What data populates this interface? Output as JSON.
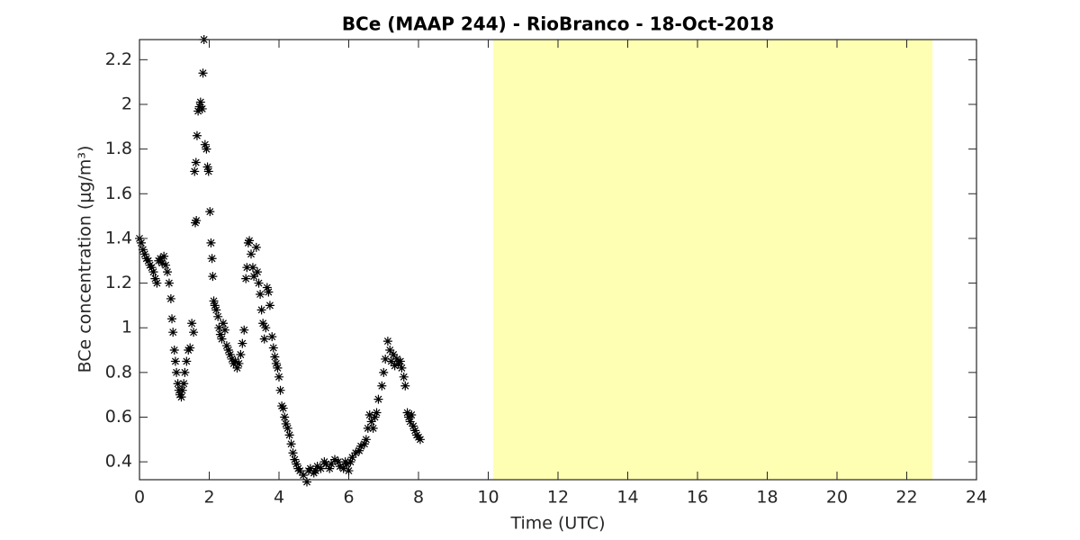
{
  "chart_data": {
    "type": "scatter",
    "title": "BCe (MAAP 244) - RioBranco - 18-Oct-2018",
    "x_label": "Time (UTC)",
    "y_label": "BCe concentration (μg/m³)",
    "marker": "*",
    "color": "#000000",
    "xlim": [
      0,
      24
    ],
    "ylim": [
      0.32,
      2.29
    ],
    "xticks": [
      0,
      2,
      4,
      6,
      8,
      10,
      12,
      14,
      16,
      18,
      20,
      22,
      24
    ],
    "yticks": [
      0.4,
      0.6,
      0.8,
      1,
      1.2,
      1.4,
      1.6,
      1.8,
      2,
      2.2
    ],
    "shaded_region": {
      "xlim": [
        10.14,
        22.74
      ],
      "color": "#ffffb3"
    },
    "x": [
      0,
      0.05,
      0.1,
      0.15,
      0.2,
      0.25,
      0.3,
      0.35,
      0.4,
      0.45,
      0.5,
      0.55,
      0.6,
      0.65,
      0.7,
      0.75,
      0.8,
      0.85,
      0.9,
      0.93,
      0.96,
      1.0,
      1.03,
      1.06,
      1.1,
      1.13,
      1.16,
      1.2,
      1.23,
      1.27,
      1.3,
      1.35,
      1.4,
      1.45,
      1.5,
      1.55,
      1.6,
      1.63,
      1.58,
      1.62,
      1.65,
      1.68,
      1.72,
      1.75,
      1.85,
      1.82,
      1.8,
      1.88,
      1.92,
      1.95,
      1.98,
      2.02,
      2.05,
      2.08,
      2.1,
      2.13,
      2.16,
      2.2,
      2.25,
      2.28,
      2.32,
      2.36,
      2.4,
      2.45,
      2.5,
      2.55,
      2.6,
      2.65,
      2.7,
      2.75,
      2.8,
      2.85,
      2.9,
      2.95,
      3.0,
      3.05,
      3.08,
      3.12,
      3.15,
      3.2,
      3.25,
      3.28,
      3.35,
      3.38,
      3.42,
      3.46,
      3.5,
      3.54,
      3.58,
      3.62,
      3.66,
      3.7,
      3.74,
      3.8,
      3.84,
      3.88,
      3.92,
      3.96,
      4.0,
      4.04,
      4.08,
      4.12,
      4.16,
      4.2,
      4.25,
      4.3,
      4.35,
      4.4,
      4.45,
      4.5,
      4.55,
      4.6,
      4.7,
      4.8,
      4.85,
      4.9,
      5.0,
      5.05,
      5.1,
      5.2,
      5.3,
      5.35,
      5.45,
      5.5,
      5.6,
      5.7,
      5.75,
      5.85,
      5.9,
      5.95,
      6.0,
      6.05,
      6.1,
      6.2,
      6.3,
      6.35,
      6.45,
      6.5,
      6.55,
      6.6,
      6.65,
      6.7,
      6.75,
      6.8,
      6.85,
      6.95,
      7.0,
      7.05,
      7.12,
      7.18,
      7.22,
      7.28,
      7.32,
      7.38,
      7.42,
      7.48,
      7.52,
      7.58,
      7.62,
      7.68,
      7.72,
      7.76,
      7.8,
      7.85,
      7.9,
      7.95,
      8.0,
      8.05
    ],
    "values": [
      1.4,
      1.38,
      1.35,
      1.33,
      1.31,
      1.3,
      1.28,
      1.27,
      1.25,
      1.22,
      1.2,
      1.3,
      1.31,
      1.29,
      1.32,
      1.28,
      1.25,
      1.2,
      1.13,
      1.04,
      0.98,
      0.9,
      0.85,
      0.8,
      0.75,
      0.72,
      0.7,
      0.69,
      0.72,
      0.75,
      0.8,
      0.85,
      0.9,
      0.91,
      1.02,
      0.98,
      1.47,
      1.48,
      1.7,
      1.74,
      1.86,
      1.97,
      1.99,
      2.01,
      2.29,
      2.14,
      1.98,
      1.82,
      1.8,
      1.72,
      1.7,
      1.52,
      1.38,
      1.31,
      1.23,
      1.12,
      1.1,
      1.08,
      1.05,
      1.0,
      0.97,
      0.95,
      1.02,
      0.99,
      0.92,
      0.9,
      0.88,
      0.86,
      0.84,
      0.85,
      0.82,
      0.84,
      0.88,
      0.93,
      0.99,
      1.22,
      1.27,
      1.38,
      1.39,
      1.33,
      1.27,
      1.23,
      1.36,
      1.25,
      1.2,
      1.15,
      1.08,
      1.02,
      0.95,
      1.0,
      1.18,
      1.16,
      1.1,
      0.96,
      0.91,
      0.87,
      0.84,
      0.82,
      0.78,
      0.72,
      0.65,
      0.64,
      0.6,
      0.57,
      0.55,
      0.52,
      0.48,
      0.44,
      0.41,
      0.39,
      0.37,
      0.36,
      0.34,
      0.31,
      0.36,
      0.37,
      0.35,
      0.36,
      0.38,
      0.37,
      0.4,
      0.39,
      0.37,
      0.39,
      0.41,
      0.4,
      0.38,
      0.37,
      0.4,
      0.39,
      0.36,
      0.4,
      0.42,
      0.44,
      0.45,
      0.47,
      0.48,
      0.5,
      0.55,
      0.61,
      0.58,
      0.55,
      0.6,
      0.62,
      0.68,
      0.74,
      0.8,
      0.86,
      0.94,
      0.9,
      0.85,
      0.88,
      0.83,
      0.86,
      0.84,
      0.85,
      0.82,
      0.78,
      0.74,
      0.62,
      0.6,
      0.58,
      0.61,
      0.56,
      0.54,
      0.52,
      0.51,
      0.5
    ]
  }
}
